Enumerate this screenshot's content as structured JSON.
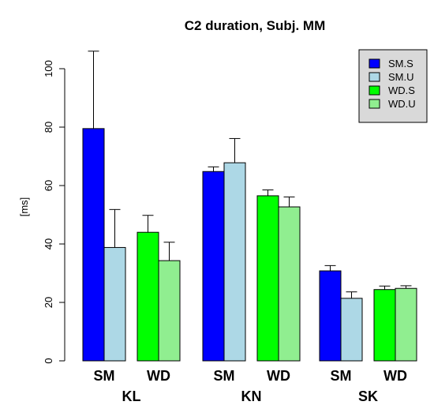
{
  "chart_data": {
    "type": "bar",
    "title": "C2 duration, Subj. MM",
    "ylabel": "[ms]",
    "xlabel": "",
    "ylim": [
      0,
      110
    ],
    "yticks": [
      0,
      20,
      40,
      60,
      80,
      100
    ],
    "grid": false,
    "legend_position": "top-right",
    "clusters": [
      {
        "label": "KL",
        "subgroups": [
          {
            "label": "SM",
            "bars": [
              {
                "series": "SM.S",
                "value": 79.5,
                "err": 26.5
              },
              {
                "series": "SM.U",
                "value": 38.8,
                "err": 13.0
              }
            ]
          },
          {
            "label": "WD",
            "bars": [
              {
                "series": "WD.S",
                "value": 44.0,
                "err": 5.8
              },
              {
                "series": "WD.U",
                "value": 34.3,
                "err": 6.3
              }
            ]
          }
        ]
      },
      {
        "label": "KN",
        "subgroups": [
          {
            "label": "SM",
            "bars": [
              {
                "series": "SM.S",
                "value": 64.8,
                "err": 1.6
              },
              {
                "series": "SM.U",
                "value": 67.8,
                "err": 8.3
              }
            ]
          },
          {
            "label": "WD",
            "bars": [
              {
                "series": "WD.S",
                "value": 56.5,
                "err": 2.0
              },
              {
                "series": "WD.U",
                "value": 52.7,
                "err": 3.4
              }
            ]
          }
        ]
      },
      {
        "label": "SK",
        "subgroups": [
          {
            "label": "SM",
            "bars": [
              {
                "series": "SM.S",
                "value": 30.8,
                "err": 1.8
              },
              {
                "series": "SM.U",
                "value": 21.4,
                "err": 2.2
              }
            ]
          },
          {
            "label": "WD",
            "bars": [
              {
                "series": "WD.S",
                "value": 24.4,
                "err": 1.2
              },
              {
                "series": "WD.U",
                "value": 24.8,
                "err": 0.9
              }
            ]
          }
        ]
      }
    ],
    "legend": [
      {
        "name": "SM.S",
        "color": "#0000ff"
      },
      {
        "name": "SM.U",
        "color": "#add8e6"
      },
      {
        "name": "WD.S",
        "color": "#00ff00"
      },
      {
        "name": "WD.U",
        "color": "#90ee90"
      }
    ],
    "colors": {
      "SM.S": "#0000ff",
      "SM.U": "#add8e6",
      "WD.S": "#00ff00",
      "WD.U": "#90ee90",
      "legend_background": "#d9d9d9"
    }
  }
}
